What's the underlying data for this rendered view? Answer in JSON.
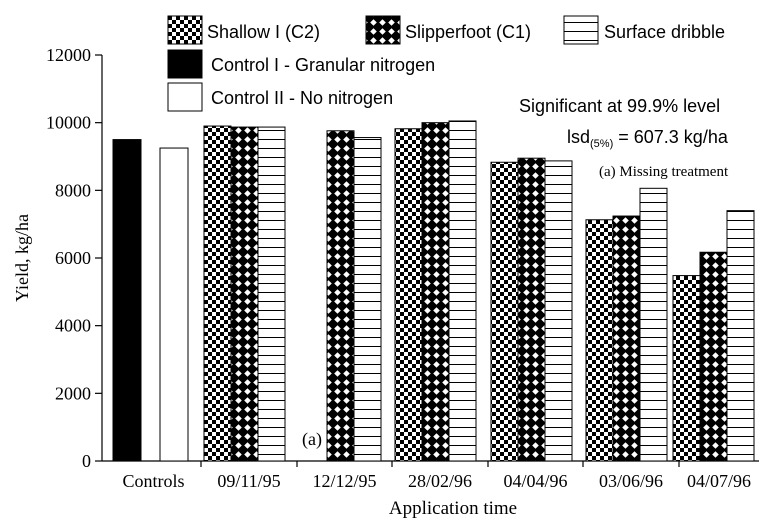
{
  "chart_data": {
    "type": "bar",
    "xlabel": "Application time",
    "ylabel": "Yield, kg/ha",
    "ylim": [
      0,
      12000
    ],
    "yticks": [
      0,
      2000,
      4000,
      6000,
      8000,
      10000,
      12000
    ],
    "grid": false,
    "legend_position": "top",
    "categories": [
      "Controls",
      "09/11/95",
      "12/12/95",
      "28/02/96",
      "04/04/96",
      "03/06/96",
      "04/07/96"
    ],
    "series": [
      {
        "name": "Control I - Granular nitrogen",
        "pattern": "solid-black",
        "values": [
          9500,
          null,
          null,
          null,
          null,
          null,
          null
        ]
      },
      {
        "name": "Control II -  No nitrogen",
        "pattern": "white",
        "values": [
          9250,
          null,
          null,
          null,
          null,
          null,
          null
        ]
      },
      {
        "name": "Shallow I (C2)",
        "pattern": "checker",
        "values": [
          null,
          9900,
          null,
          9820,
          8830,
          7130,
          5480
        ]
      },
      {
        "name": "Slipperfoot (C1)",
        "pattern": "diamond",
        "values": [
          null,
          9870,
          9760,
          10000,
          8950,
          7240,
          6170
        ]
      },
      {
        "name": "Surface dribble",
        "pattern": "hstripe",
        "values": [
          null,
          9870,
          9560,
          10050,
          8870,
          8060,
          7400
        ]
      }
    ],
    "annotations": {
      "significance": "Significant at 99.9% level",
      "lsd_prefix": "lsd",
      "lsd_sub": "(5%)",
      "lsd_value": " = 607.3 kg/ha",
      "missing_note": "(a) Missing treatment",
      "missing_marker": "(a)",
      "missing_marker_category": "12/12/95"
    }
  }
}
